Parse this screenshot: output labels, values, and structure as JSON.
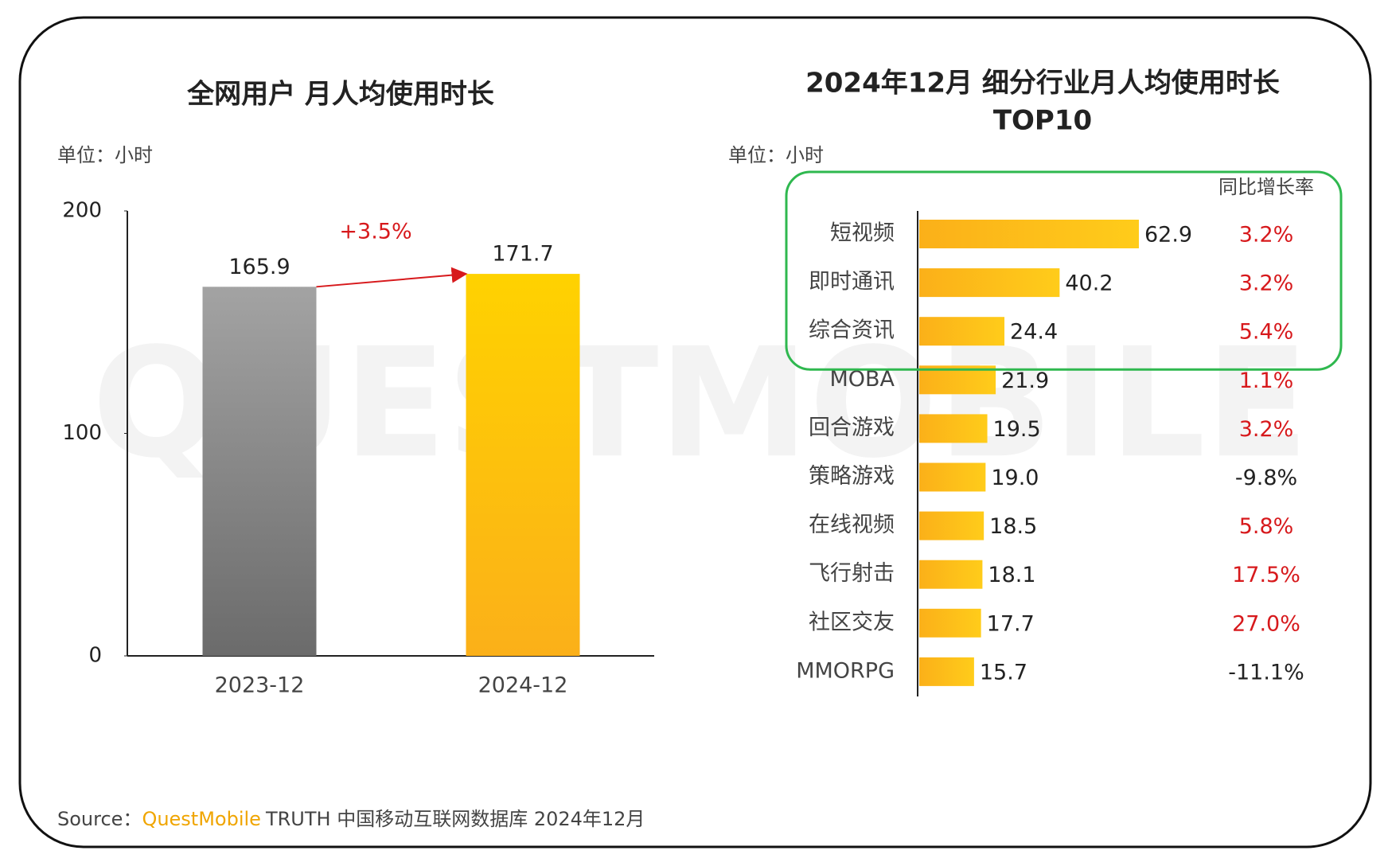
{
  "chart_data": [
    {
      "type": "bar",
      "title": "全网用户 月人均使用时长",
      "unit": "单位：小时",
      "categories": [
        "2023-12",
        "2024-12"
      ],
      "values": [
        165.9,
        171.7
      ],
      "colors": [
        "gray",
        "yellow"
      ],
      "ylim": [
        0,
        200
      ],
      "yticks": [
        0,
        100,
        200
      ],
      "annotation": "+3.5%",
      "annotation_color": "#d7191c"
    },
    {
      "type": "hbar",
      "title": [
        "2024年12月 细分行业月人均使用时长",
        "TOP10"
      ],
      "unit": "单位：小时",
      "growth_header": "同比增长率",
      "categories": [
        "短视频",
        "即时通讯",
        "综合资讯",
        "MOBA",
        "回合游戏",
        "策略游戏",
        "在线视频",
        "飞行射击",
        "社区交友",
        "MMORPG"
      ],
      "values": [
        62.9,
        40.2,
        24.4,
        21.9,
        19.5,
        19.0,
        18.5,
        18.1,
        17.7,
        15.7
      ],
      "value_labels": [
        "62.9",
        "40.2",
        "24.4",
        "21.9",
        "19.5",
        "19.0",
        "18.5",
        "18.1",
        "17.7",
        "15.7"
      ],
      "growth_labels": [
        "3.2%",
        "3.2%",
        "5.4%",
        "1.1%",
        "3.2%",
        "-9.8%",
        "5.8%",
        "17.5%",
        "27.0%",
        "-11.1%"
      ],
      "positive_color": "#d7191c",
      "negative_color": "#222222",
      "xlim": [
        0,
        80
      ],
      "highlight_count": 3,
      "highlight_color": "#2fb84f"
    }
  ],
  "watermark": "QUESTMOBILE",
  "footer": {
    "source": "Source：",
    "brand": "QuestMobile",
    "text": "TRUTH 中国移动互联网数据库 2024年12月"
  }
}
